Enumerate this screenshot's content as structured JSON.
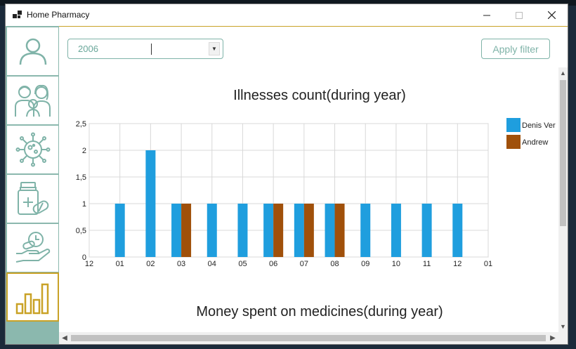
{
  "window": {
    "title": "Home Pharmacy"
  },
  "sidebar": {
    "items": [
      {
        "name": "profile"
      },
      {
        "name": "family"
      },
      {
        "name": "illnesses"
      },
      {
        "name": "medicines"
      },
      {
        "name": "expenses"
      },
      {
        "name": "statistics",
        "active": true
      }
    ]
  },
  "filter": {
    "year": "2006",
    "apply_label": "Apply filter"
  },
  "chart1": {
    "title": "Illnesses count(during year)"
  },
  "chart2": {
    "title": "Money spent on medicines(during year)"
  },
  "colors": {
    "accent": "#8bb8ae",
    "active_border": "#c9a227",
    "series1": "#1f9ede",
    "series2": "#a0500a"
  },
  "chart_data": {
    "type": "bar",
    "title": "Illnesses count(during year)",
    "x_tick_labels": [
      "12",
      "01",
      "02",
      "03",
      "04",
      "05",
      "06",
      "07",
      "08",
      "09",
      "10",
      "11",
      "12",
      "01"
    ],
    "categories": [
      "01",
      "02",
      "03",
      "04",
      "05",
      "06",
      "07",
      "08",
      "09",
      "10",
      "11",
      "12"
    ],
    "y_tick_labels": [
      "0",
      "0,5",
      "1",
      "1,5",
      "2",
      "2,5"
    ],
    "ylim": [
      0,
      2.5
    ],
    "grid": true,
    "legend_position": "right",
    "series": [
      {
        "name": "Denis Ver",
        "color": "#1f9ede",
        "values": [
          1,
          2,
          1,
          1,
          1,
          1,
          1,
          1,
          1,
          1,
          1,
          1
        ]
      },
      {
        "name": "Andrew",
        "color": "#a0500a",
        "values": [
          0,
          0,
          1,
          0,
          0,
          1,
          1,
          1,
          0,
          0,
          0,
          0
        ]
      }
    ]
  }
}
